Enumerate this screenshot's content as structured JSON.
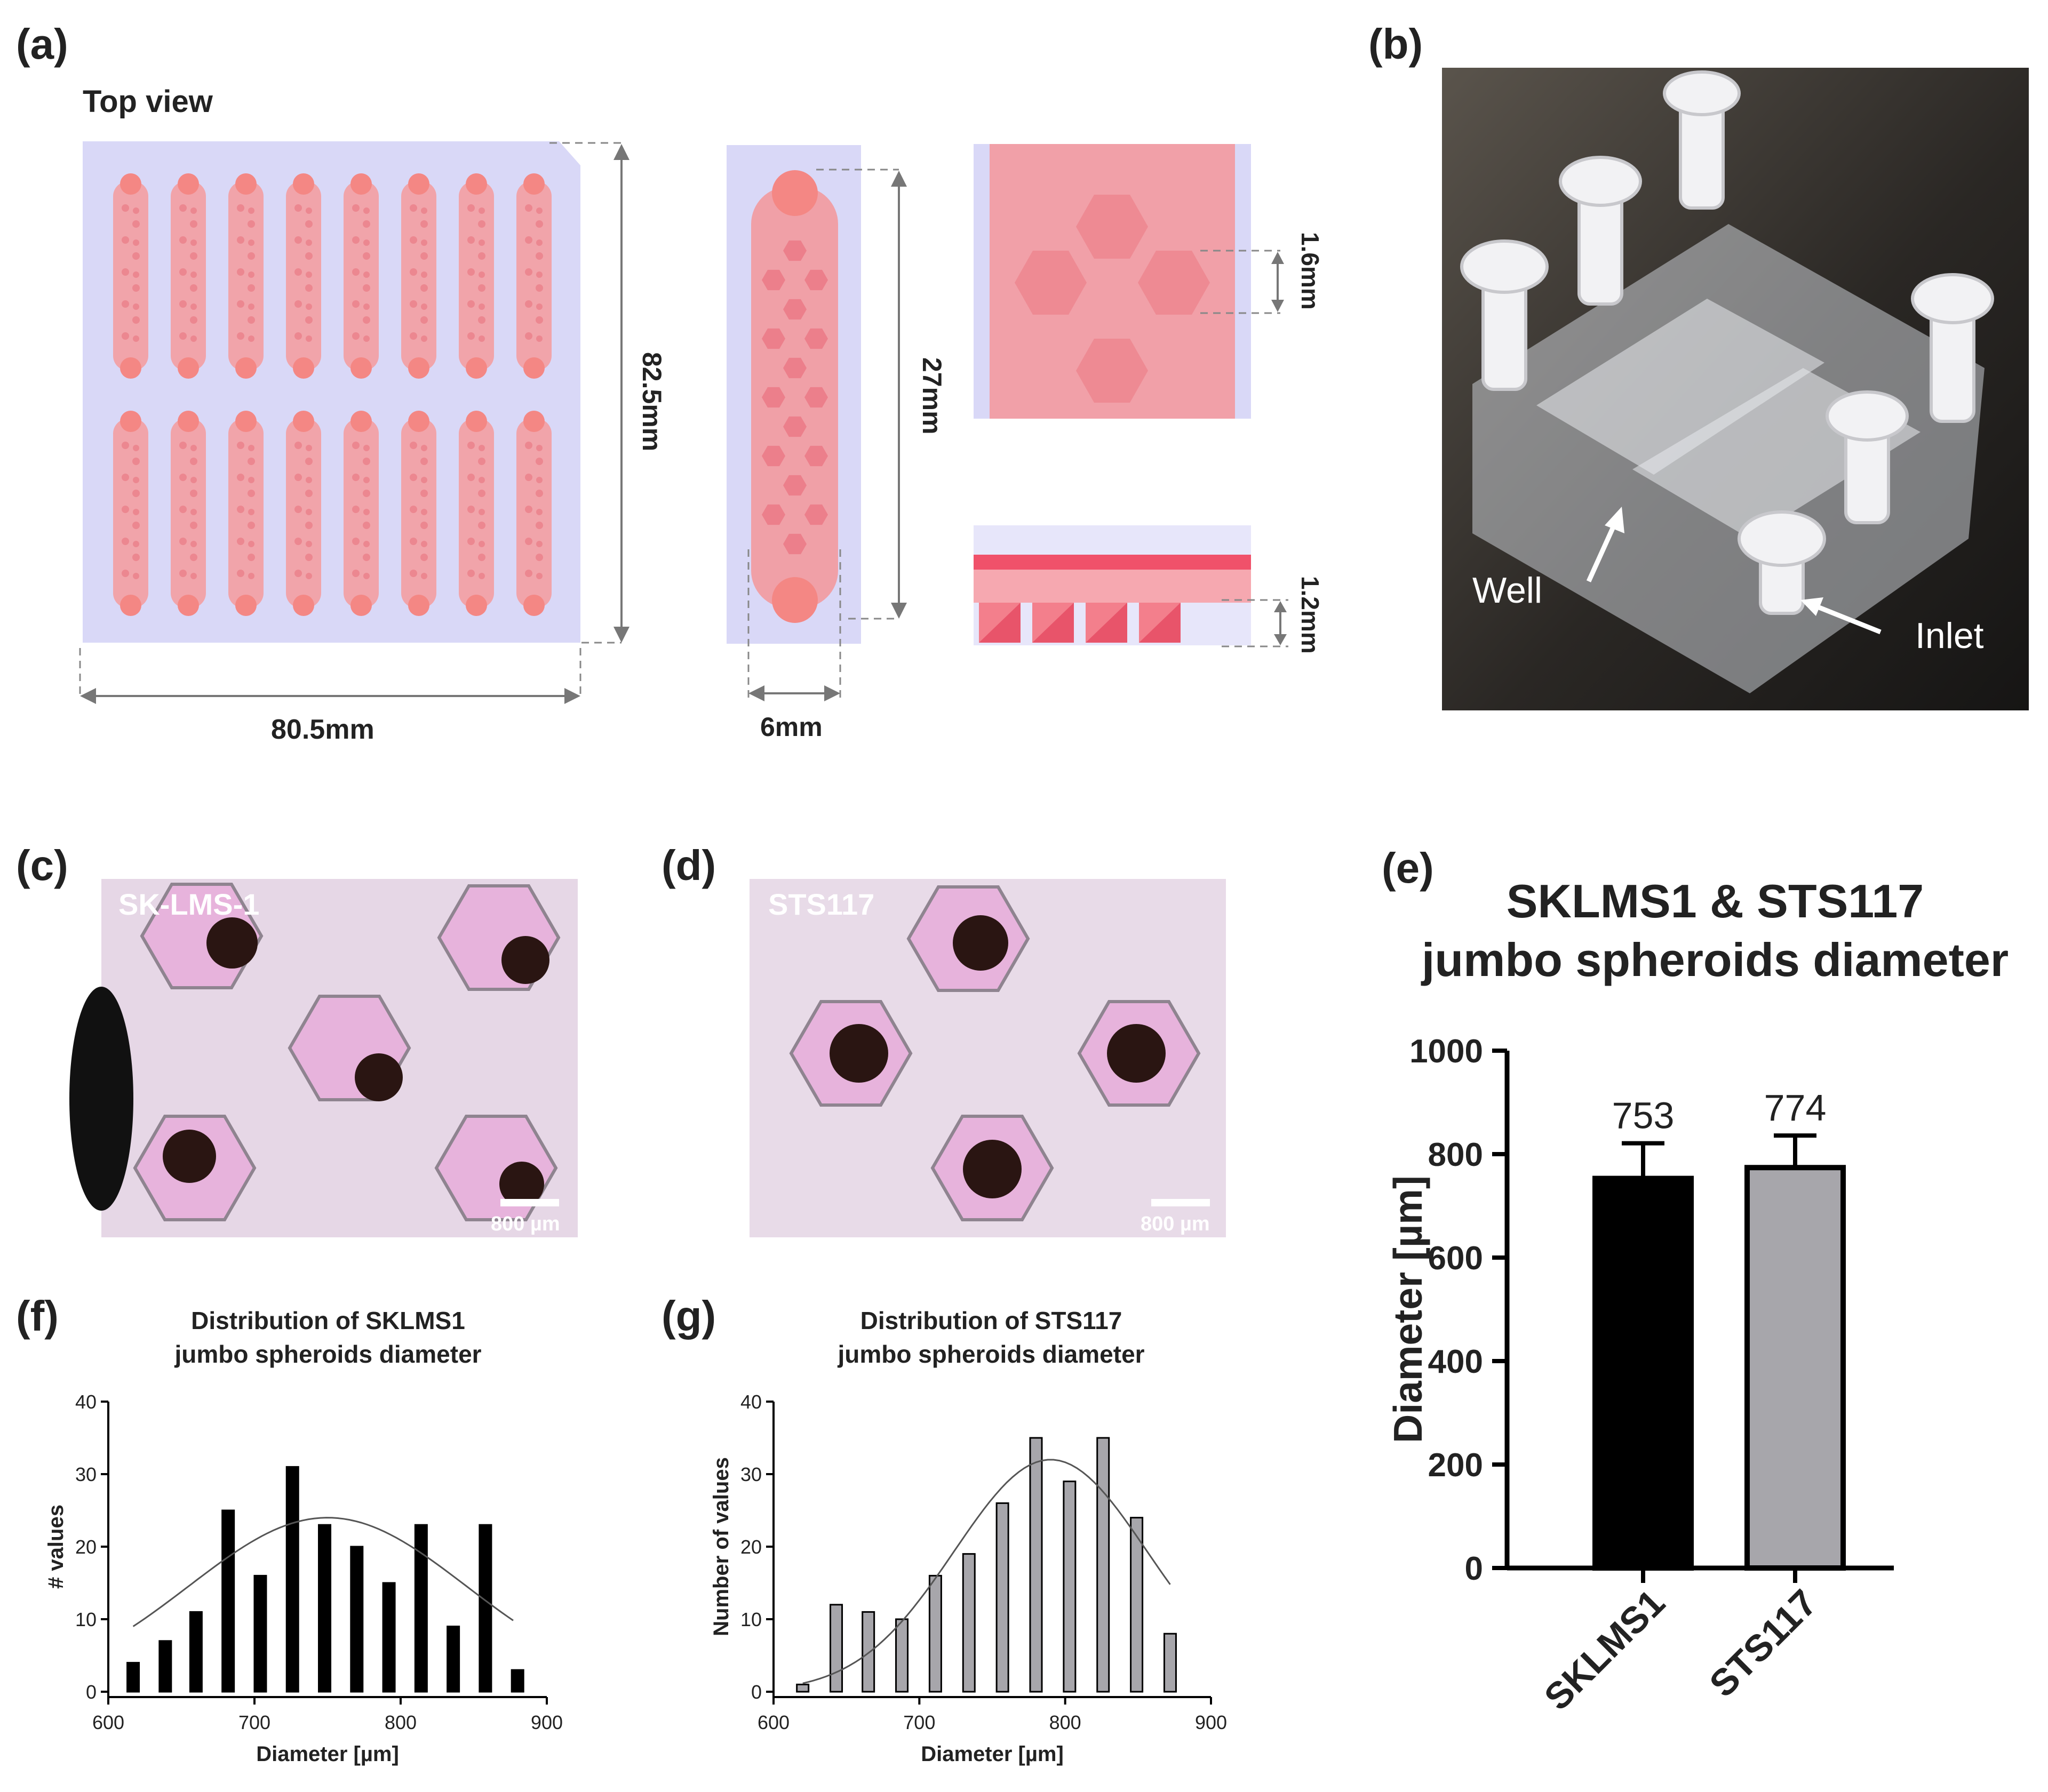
{
  "panel_labels": {
    "a": "(a)",
    "b": "(b)",
    "c": "(c)",
    "d": "(d)",
    "e": "(e)",
    "f": "(f)",
    "g": "(g)"
  },
  "panel_a": {
    "heading": "Top view",
    "width_label": "80.5mm",
    "height_label": "82.5mm",
    "channel_length_label": "27mm",
    "channel_width_label": "6mm",
    "well_size_label": "1.6mm",
    "well_depth_label": "1.2mm"
  },
  "panel_b": {
    "well_label": "Well",
    "inlet_label": "Inlet"
  },
  "panel_c": {
    "cell_line": "SK-LMS-1",
    "scale_bar": "800 µm"
  },
  "panel_d": {
    "cell_line": "STS117",
    "scale_bar": "800 µm"
  },
  "chart_data": [
    {
      "id": "e",
      "type": "bar",
      "title": "SKLMS1 & STS117\njumbo spheroids diameter",
      "title_lines": [
        "SKLMS1 & STS117",
        "jumbo spheroids diameter"
      ],
      "ylabel": "Diameter [µm]",
      "ylim": [
        0,
        1000
      ],
      "yticks": [
        0,
        200,
        400,
        600,
        800,
        1000
      ],
      "categories": [
        "SKLMS1",
        "STS117"
      ],
      "values": [
        753,
        774
      ],
      "error": [
        68,
        62
      ],
      "value_labels": [
        "753",
        "774"
      ],
      "colors": [
        "#000000",
        "#a7a6ab"
      ]
    },
    {
      "id": "f",
      "type": "bar",
      "title_lines": [
        "Distribution of SKLMS1",
        "jumbo spheroids diameter"
      ],
      "xlabel": "Diameter [µm]",
      "ylabel": "# values",
      "xlim": [
        600,
        900
      ],
      "ylim": [
        0,
        40
      ],
      "xticks": [
        600,
        700,
        800,
        900
      ],
      "yticks": [
        0,
        10,
        20,
        30,
        40
      ],
      "x": [
        617,
        639,
        660,
        682,
        704,
        726,
        748,
        770,
        792,
        814,
        836,
        858,
        880
      ],
      "values": [
        4,
        7,
        11,
        25,
        16,
        31,
        23,
        20,
        15,
        23,
        9,
        23,
        3
      ],
      "bar_color": "#000000",
      "fit_curve": {
        "mean": 750,
        "peak": 24,
        "sd": 95
      }
    },
    {
      "id": "g",
      "type": "bar",
      "title_lines": [
        "Distribution of STS117",
        "jumbo spheroids diameter"
      ],
      "xlabel": "Diameter [µm]",
      "ylabel": "Number of values",
      "xlim": [
        600,
        900
      ],
      "ylim": [
        0,
        40
      ],
      "xticks": [
        600,
        700,
        800,
        900
      ],
      "yticks": [
        0,
        10,
        20,
        30,
        40
      ],
      "x": [
        620,
        643,
        665,
        688,
        711,
        734,
        757,
        780,
        803,
        826,
        849,
        872
      ],
      "values": [
        1,
        12,
        11,
        10,
        16,
        19,
        26,
        35,
        29,
        35,
        24,
        8
      ],
      "bar_color": "#a7a6ab",
      "fit_curve": {
        "mean": 790,
        "peak": 32,
        "sd": 66
      }
    }
  ]
}
